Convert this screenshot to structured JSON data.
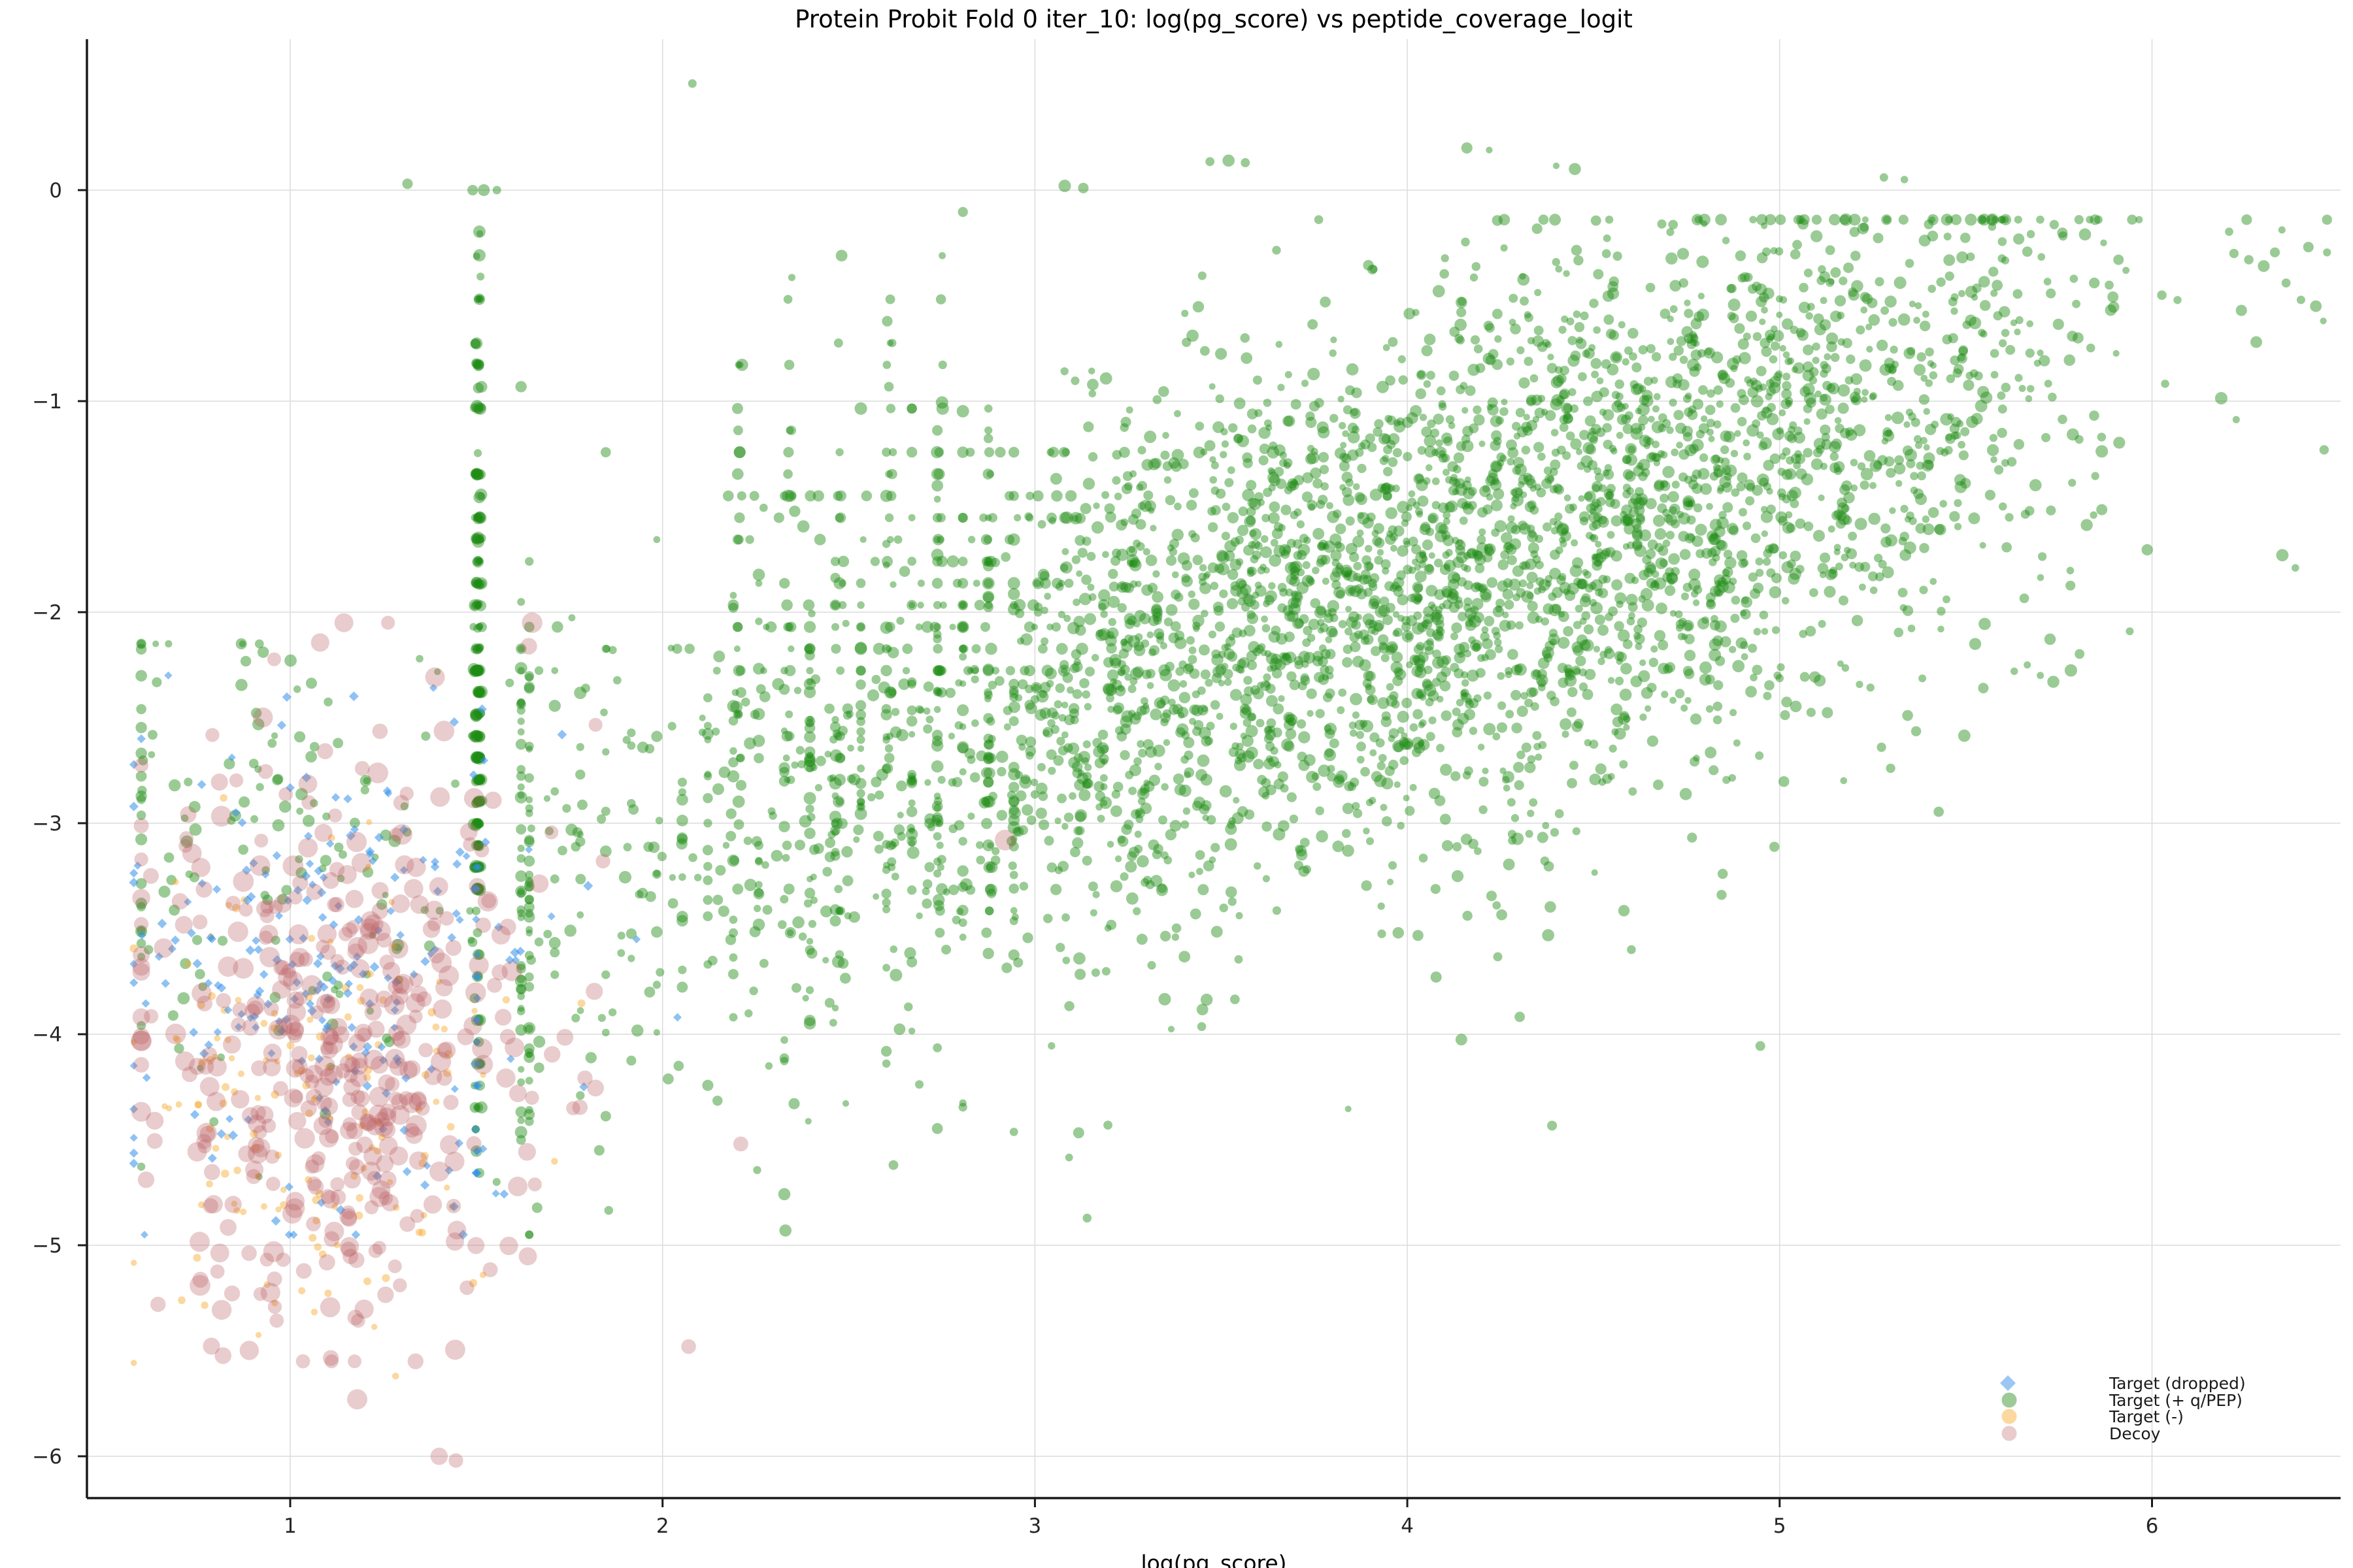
{
  "chart_data": {
    "type": "scatter",
    "title": "Protein Probit Fold 0 iter_10: log(pg_score) vs peptide_coverage_logit",
    "xlabel": "log(pg_score)",
    "ylabel": "",
    "xlim": [
      0.45,
      6.51
    ],
    "ylim": [
      -6.2,
      0.72
    ],
    "xticks": [
      1,
      2,
      3,
      4,
      5,
      6
    ],
    "xtick_labels": [
      "1",
      "2",
      "3",
      "4",
      "5",
      "6"
    ],
    "yticks": [
      0,
      -1,
      -2,
      -3,
      -4,
      -5,
      -6
    ],
    "ytick_labels": [
      "0",
      "−1",
      "−2",
      "−3",
      "−4",
      "−5",
      "−6"
    ],
    "grid": true,
    "legend": {
      "position": "lower right",
      "frame": false
    },
    "style": {
      "background": "#ffffff",
      "grid_color": "#dcdcdc",
      "spine_color": "#1a1a1a",
      "text_color": "#000000",
      "tick_text_color": "#262626"
    },
    "seed": 20240,
    "draw_order": [
      "target_pos_qpep",
      "target_neg",
      "target_dropped",
      "decoy"
    ],
    "series": [
      {
        "key": "target_dropped",
        "name": "Target (dropped)",
        "marker": "diamond",
        "color": "#3390e9",
        "swatch": "#9cc7f2",
        "alpha": 0.55,
        "radius": [
          6,
          7.6
        ],
        "approx_count": 255,
        "x_range": [
          0.58,
          2.05
        ],
        "y_range": [
          -4.95,
          -2.3
        ],
        "components": [
          {
            "type": "cluster",
            "n": 212,
            "x": [
              1.1,
              0.29,
              0.58,
              1.8
            ],
            "y": [
              -3.72,
              0.55,
              -4.95,
              -2.3
            ]
          },
          {
            "type": "vline",
            "n": 22,
            "x": 1.502,
            "xsd": 0.003,
            "ymin": 3.2,
            "ymax": 4.7,
            "step": 0.1035
          },
          {
            "type": "points",
            "pts": [
              [
                2.04,
                -3.92
              ],
              [
                1.93,
                -3.55
              ],
              [
                0.6,
                -2.6
              ],
              [
                1.73,
                -2.58
              ]
            ]
          }
        ]
      },
      {
        "key": "target_pos_qpep",
        "name": "Target (+ q/PEP)",
        "marker": "circle",
        "color": "#1f8b14",
        "swatch": "#9ccb97",
        "alpha": 0.45,
        "radius": [
          5,
          9.6
        ],
        "approx_count": 4700,
        "x_range": [
          0.6,
          6.47
        ],
        "y_range": [
          -4.95,
          0.5
        ],
        "trend_note": "peptide_coverage_logit rises with log(pg_score); discrete vertical/horizontal banding at low scores, dense column at x=1.50",
        "components": [
          {
            "type": "trend",
            "n": 3950,
            "xmix": [
              [
                3.5,
                0.98,
                0.62
              ],
              [
                4.55,
                0.72
              ]
            ],
            "xclamp": [
              1.62,
              6.47
            ],
            "thin": [
              5.92,
              0.33,
              5.0,
              0.9
            ],
            "a": -3.02,
            "b": 0.585,
            "x0": 2,
            "sd": 0.63,
            "tailp": 0.022,
            "yclamp": [
              -4.95,
              -0.14
            ],
            "snapx": [
              2.95,
              0.5,
              0.0685
            ],
            "snapy": [
              3.1,
              -2.3,
              0.65,
              0.1035
            ]
          },
          {
            "type": "cluster",
            "n": 150,
            "x": [
              0.95,
              0.33,
              0.6,
              1.62
            ],
            "y": [
              -3.2,
              0.6,
              -4.7,
              -2.15
            ]
          },
          {
            "type": "stripe",
            "n": 235,
            "x": 1.504,
            "xsd": 0.005,
            "step": 0.1035,
            "kmax": 33,
            "pow": 0.5
          },
          {
            "type": "vline",
            "n": 26,
            "x": 1.504,
            "xsd": 0.005,
            "ymin": 3.4,
            "ymax": 4.65,
            "step": 0.1035
          },
          {
            "type": "columns",
            "xs": [
              2.205,
              2.34,
              2.475,
              2.61,
              2.745,
              2.875
            ],
            "n": 24,
            "ymin": 0.32,
            "ymax": 3.6,
            "step": 0.1035
          },
          {
            "type": "points",
            "pts": [
              [
                2.08,
                0.505
              ],
              [
                3.47,
                0.135
              ],
              [
                3.52,
                0.14
              ],
              [
                3.565,
                0.13
              ],
              [
                1.315,
                0.03
              ],
              [
                1.49,
                0.0
              ],
              [
                1.52,
                0.0
              ],
              [
                1.555,
                0.0
              ],
              [
                5.28,
                0.06
              ],
              [
                5.335,
                0.05
              ],
              [
                4.16,
                0.2
              ],
              [
                4.22,
                0.19
              ],
              [
                4.4,
                0.115
              ],
              [
                4.45,
                0.1
              ],
              [
                3.08,
                0.02
              ],
              [
                3.13,
                0.01
              ],
              [
                2.33,
                -4.93
              ],
              [
                1.83,
                -4.55
              ],
              [
                2.62,
                -4.62
              ],
              [
                6.22,
                -0.3
              ],
              [
                6.26,
                -0.33
              ],
              [
                6.3,
                -0.36
              ],
              [
                6.33,
                -0.295
              ],
              [
                6.36,
                -0.44
              ],
              [
                6.4,
                -0.52
              ],
              [
                6.44,
                -0.55
              ],
              [
                6.46,
                -0.62
              ],
              [
                6.28,
                -0.72
              ],
              [
                6.24,
                -0.57
              ],
              [
                6.35,
                -1.73
              ],
              [
                6.385,
                -1.79
              ],
              [
                6.42,
                -0.27
              ],
              [
                5.82,
                -0.21
              ],
              [
                5.87,
                -0.25
              ],
              [
                5.91,
                -0.33
              ],
              [
                5.79,
                -0.42
              ],
              [
                5.845,
                -0.44
              ],
              [
                5.885,
                -0.45
              ],
              [
                5.93,
                -0.38
              ],
              [
                5.63,
                -2.28
              ],
              [
                5.665,
                -2.25
              ],
              [
                5.7,
                -2.3
              ],
              [
                5.735,
                -2.33
              ]
            ]
          }
        ]
      },
      {
        "key": "target_neg",
        "name": "Target (-)",
        "marker": "circle",
        "color": "#f6a82c",
        "swatch": "#fbd8a0",
        "alpha": 0.45,
        "radius": [
          4.6,
          6.4
        ],
        "approx_count": 148,
        "x_range": [
          0.58,
          1.8
        ],
        "y_range": [
          -5.62,
          -2.88
        ],
        "components": [
          {
            "type": "cluster",
            "n": 148,
            "x": [
              1.05,
              0.27,
              0.58,
              1.8
            ],
            "y": [
              -4.3,
              0.58,
              -5.62,
              -2.88
            ]
          }
        ]
      },
      {
        "key": "decoy",
        "name": "Decoy",
        "marker": "circle",
        "color": "#ba5f65",
        "swatch": "#e9cbcd",
        "alpha": 0.32,
        "radius": [
          10.5,
          16
        ],
        "rpow": 1.3,
        "approx_count": 440,
        "x_range": [
          0.6,
          2.92
        ],
        "y_range": [
          -6.02,
          -2.05
        ],
        "components": [
          {
            "type": "cluster",
            "n": 430,
            "x": [
              1.12,
              0.28,
              0.6,
              1.82
            ],
            "y": [
              -4.08,
              0.74,
              -5.55,
              -2.05
            ]
          },
          {
            "type": "points",
            "pts": [
              [
                2.07,
                -5.48
              ],
              [
                1.4,
                -6.0
              ],
              [
                1.445,
                -6.02
              ],
              [
                2.21,
                -4.52
              ],
              [
                2.92,
                -3.08
              ],
              [
                1.84,
                -3.18
              ],
              [
                0.645,
                -5.28
              ],
              [
                1.18,
                -5.73
              ]
            ]
          }
        ]
      }
    ]
  }
}
